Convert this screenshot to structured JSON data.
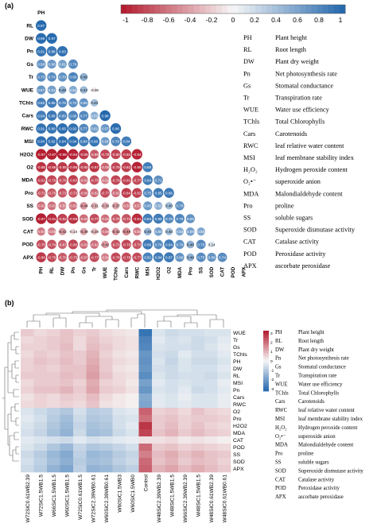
{
  "panel_labels": {
    "a": "(a)",
    "b": "(b)"
  },
  "legend_a": {
    "ticks": [
      "-1",
      "-0.8",
      "-0.6",
      "-0.4",
      "-0.2",
      "0",
      "0.2",
      "0.4",
      "0.6",
      "0.8",
      "1"
    ],
    "key": [
      [
        "PH",
        "Plant height"
      ],
      [
        "RL",
        "Root length"
      ],
      [
        "DW",
        "Plant dry weight"
      ],
      [
        "Pn",
        "Net photosynthesis rate"
      ],
      [
        "Gs",
        "Stomatal conductance"
      ],
      [
        "Tr",
        "Transpiration rate"
      ],
      [
        "WUE",
        "Water use efficiency"
      ],
      [
        "TChls",
        "Total Chlorophylls"
      ],
      [
        "Cars",
        "Carotenoids"
      ],
      [
        "RWC",
        "leaf relative water content"
      ],
      [
        "MSI",
        "leaf membrane stability index"
      ],
      [
        "H₂O₂",
        "Hydrogen peroxide content"
      ],
      [
        "O₂•⁻",
        "superoxide anion"
      ],
      [
        "MDA",
        "Malondialdehyde content"
      ],
      [
        "Pro",
        "proline"
      ],
      [
        "SS",
        "soluble sugars"
      ],
      [
        "SOD",
        "Superoxide dismutase activity"
      ],
      [
        "CAT",
        "Catalase activity"
      ],
      [
        "POD",
        "Peroxidase activity"
      ],
      [
        "APX",
        "ascorbate peroxidase"
      ]
    ]
  },
  "legend_b": {
    "ticks": [
      "3",
      "2",
      "1",
      "0",
      "-1",
      "-2",
      "-3"
    ],
    "key": [
      [
        "PH",
        "Plant height"
      ],
      [
        "RL",
        "Root length"
      ],
      [
        "DW",
        "Plant dry weight"
      ],
      [
        "Pn",
        "Net photosynthesis rate"
      ],
      [
        "Gs",
        "Stomatal conductance"
      ],
      [
        "Tr",
        "Transpiration rate"
      ],
      [
        "WUE",
        "Water use efficiency"
      ],
      [
        "TChls",
        "Total Chlorophylls"
      ],
      [
        "Cars",
        "Carotenoids"
      ],
      [
        "RWC",
        "leaf relative water content"
      ],
      [
        "MSI",
        "leaf membrane stability index"
      ],
      [
        "H₂O₂",
        "Hydrogen peroxide content"
      ],
      [
        "O₂•⁻",
        "superoxide anion"
      ],
      [
        "MDA",
        "Malondialdehyde content"
      ],
      [
        "Pro",
        "proline"
      ],
      [
        "SS",
        "soluble sugars"
      ],
      [
        "SOD",
        "Superoxide dismutase activity"
      ],
      [
        "CAT",
        "Catalase activity"
      ],
      [
        "POD",
        "Peroxidase activity"
      ],
      [
        "APX",
        "ascorbate peroxidase"
      ]
    ]
  },
  "colors": {
    "negative": "#b2182b",
    "zero": "#f7f7f7",
    "positive": "#2166ac",
    "heat_hi": "#b2182b",
    "heat_lo": "#2166ac"
  },
  "chart_data": [
    {
      "type": "heatmap",
      "variables": [
        "PH",
        "RL",
        "DW",
        "Pn",
        "Gs",
        "Tr",
        "WUE",
        "TChls",
        "Cars",
        "RWC",
        "MSI",
        "H2O2",
        "O2",
        "MDA",
        "Pro",
        "SS",
        "SOD",
        "CAT",
        "POD",
        "APX"
      ],
      "scale_range": [
        -1,
        1
      ],
      "lower_triangle": [
        [
          "0.97"
        ],
        [
          "0.96",
          "0.97"
        ],
        [
          "0.91",
          "0.88",
          "0.93"
        ],
        [
          "0.68",
          "0.66",
          "0.61",
          "0.76"
        ],
        [
          "0.73",
          "0.74",
          "0.70",
          "0.80",
          "0.49"
        ],
        [
          "0.67",
          "0.61",
          "0.49",
          "0.54",
          "0.43",
          "-0.06"
        ],
        [
          "0.82",
          "0.85",
          "0.78",
          "0.72",
          "0.68",
          "0.40"
        ],
        [
          "0.84",
          "0.88",
          "0.80",
          "0.80",
          "0.77",
          "0.51",
          "0.98"
        ],
        [
          "0.91",
          "0.90",
          "0.95",
          "0.92",
          "0.77",
          "0.61",
          "0.67",
          "0.96"
        ],
        [
          "0.94",
          "0.92",
          "0.94",
          "0.94",
          "0.84",
          "0.90",
          "0.64",
          "0.79",
          "0.84"
        ],
        [
          "-0.97",
          "-0.97",
          "-0.98",
          "-0.94",
          "-0.85",
          "-0.69",
          "-0.78",
          "-0.80",
          "-0.84",
          "-0.94"
        ],
        [
          "-0.88",
          "-0.86",
          "-0.85",
          "-0.86",
          "-0.80",
          "-0.87",
          "-0.65",
          "-0.79",
          "-0.82",
          "-0.95",
          "0.85"
        ],
        [
          "-0.81",
          "-0.79",
          "-0.76",
          "-0.83",
          "-0.62",
          "-0.75",
          "-0.54",
          "-0.79",
          "-0.83",
          "-0.77",
          "0.84",
          "0.71"
        ],
        [
          "-0.71",
          "-0.70",
          "-0.72",
          "-0.73",
          "-0.66",
          "-0.62",
          "-0.77",
          "-0.61",
          "-0.84",
          "-0.82",
          "0.75",
          "0.85",
          "0.86"
        ],
        [
          "-0.61",
          "-0.61",
          "-0.53",
          "-0.59",
          "-0.44",
          "-0.31",
          "-0.33",
          "-0.37",
          "-0.56",
          "-0.57",
          "0.65",
          "0.52",
          "0.40",
          "0.70"
        ],
        [
          "-0.97",
          "-0.91",
          "-0.82",
          "-0.89",
          "-0.62",
          "-0.77",
          "-0.61",
          "-0.70",
          "-0.73",
          "-0.91",
          "0.84",
          "0.85",
          "0.76",
          "0.78",
          "0.69"
        ],
        [
          "-0.57",
          "-0.55",
          "-0.42",
          "-0.14",
          "-0.39",
          "-0.28",
          "-0.59",
          "-0.43",
          "-0.49",
          "-0.55",
          "0.45",
          "0.60",
          "0.40",
          "0.54",
          "0.59",
          "0.55"
        ],
        [
          "-0.75",
          "-0.74",
          "-0.67",
          "-0.80",
          "-0.63",
          "-0.61",
          "-0.42",
          "-0.73",
          "-0.79",
          "-0.73",
          "0.86",
          "0.74",
          "0.84",
          "0.70",
          "0.48",
          "0.75",
          "0.14"
        ],
        [
          "-0.86",
          "-0.78",
          "-0.70",
          "-0.75",
          "-0.67",
          "-0.77",
          "-0.54",
          "-0.78",
          "-0.78",
          "-0.77",
          "0.81",
          "0.84",
          "0.87",
          "0.69",
          "0.49",
          "0.75",
          "0.69",
          "0.74"
        ]
      ]
    },
    {
      "type": "heatmap",
      "rows": [
        "WUE",
        "Tr",
        "Gs",
        "TChls",
        "PH",
        "DW",
        "RL",
        "MSI",
        "Pn",
        "Cars",
        "RWC",
        "O2",
        "Pro",
        "H2O2",
        "MDA",
        "CAT",
        "POD",
        "SS",
        "SOD",
        "APX"
      ],
      "columns": [
        "W72SiC0.61WB2.39",
        "W72SiC1.5WB1.5",
        "W66SiC1.5WB1.5",
        "W60SiC1.5WB1.5",
        "W72SiC0.61WB1.5",
        "W72SiC2.39WB0.61",
        "W60SiC2.39WB0.61",
        "W60SiC1.5WB3",
        "W60SiC1.5WB0",
        "Control",
        "W48SiC2.39WB2.39",
        "W48SiC1.5WB1.5",
        "W66SiC2.39WB2.39",
        "W48SiC1.5WB1.5",
        "W48SiC0.61WB2.39",
        "W48SiC0.61WB0.61"
      ],
      "color_range": [
        -3,
        3
      ],
      "values": [
        [
          0.6,
          0.4,
          0.5,
          0.7,
          0.5,
          0.6,
          0.4,
          0.3,
          0.2,
          -2.7,
          -0.4,
          -0.6,
          -0.5,
          -0.5,
          -0.4,
          -0.4
        ],
        [
          0.4,
          0.5,
          0.6,
          0.7,
          0.4,
          0.7,
          0.5,
          0.4,
          0.3,
          -2.4,
          -0.3,
          -0.5,
          -0.4,
          -0.6,
          -0.5,
          -0.3
        ],
        [
          0.5,
          0.5,
          0.6,
          0.8,
          0.4,
          0.8,
          0.6,
          0.4,
          0.3,
          -2.3,
          -0.4,
          -0.5,
          -0.5,
          -0.6,
          -0.4,
          -0.2
        ],
        [
          0.4,
          0.6,
          0.5,
          0.7,
          0.6,
          0.9,
          0.5,
          0.3,
          0.2,
          -2.0,
          -0.5,
          -0.6,
          -0.3,
          -0.5,
          -0.5,
          -0.3
        ],
        [
          0.5,
          0.7,
          0.6,
          0.8,
          0.6,
          1.0,
          0.6,
          0.4,
          0.3,
          -2.1,
          -0.4,
          -0.7,
          -0.4,
          -0.6,
          -0.6,
          -0.4
        ],
        [
          0.5,
          0.6,
          0.5,
          0.7,
          0.7,
          1.1,
          0.6,
          0.3,
          0.2,
          -2.0,
          -0.5,
          -0.6,
          -0.4,
          -0.5,
          -0.5,
          -0.3
        ],
        [
          0.6,
          0.6,
          0.6,
          0.8,
          0.7,
          1.2,
          0.7,
          0.4,
          0.3,
          -2.2,
          -0.4,
          -0.6,
          -0.5,
          -0.5,
          -0.6,
          -0.4
        ],
        [
          0.4,
          0.6,
          0.6,
          0.7,
          0.5,
          1.0,
          0.5,
          0.4,
          0.2,
          -1.8,
          -0.3,
          -0.5,
          -0.4,
          -0.5,
          -0.5,
          -0.2
        ],
        [
          0.5,
          0.7,
          0.7,
          0.9,
          0.6,
          1.1,
          0.6,
          0.5,
          0.3,
          -2.0,
          -0.4,
          -0.5,
          -0.3,
          -0.6,
          -0.5,
          -0.3
        ],
        [
          0.3,
          0.5,
          0.4,
          0.6,
          0.5,
          0.8,
          0.4,
          0.2,
          0.1,
          -1.6,
          -0.3,
          -0.4,
          -0.2,
          -0.4,
          -0.4,
          -0.2
        ],
        [
          0.4,
          0.5,
          0.4,
          0.5,
          0.4,
          0.7,
          0.3,
          0.2,
          0.1,
          -1.7,
          -0.3,
          -0.4,
          -0.3,
          -0.4,
          -0.4,
          -0.2
        ],
        [
          -0.4,
          -0.6,
          -0.8,
          -1.0,
          -0.5,
          -0.9,
          -0.8,
          -0.4,
          -0.3,
          2.0,
          0.5,
          0.6,
          0.4,
          0.7,
          0.5,
          0.4
        ],
        [
          -0.3,
          -0.5,
          -0.9,
          -1.2,
          -0.6,
          -1.0,
          -0.9,
          -0.5,
          -0.4,
          1.8,
          0.6,
          0.7,
          0.5,
          0.6,
          0.6,
          0.5
        ],
        [
          -0.4,
          -0.6,
          -1.0,
          -1.3,
          -0.7,
          -1.1,
          -1.0,
          -0.5,
          -0.3,
          2.6,
          0.6,
          0.8,
          0.5,
          0.7,
          0.5,
          0.4
        ],
        [
          -0.5,
          -0.7,
          -1.1,
          -1.4,
          -0.6,
          -1.2,
          -1.1,
          -0.6,
          -0.4,
          2.4,
          0.7,
          0.9,
          0.6,
          0.8,
          0.6,
          0.5
        ],
        [
          -0.3,
          -0.4,
          -0.5,
          -0.6,
          -0.3,
          -0.5,
          -0.4,
          -0.3,
          -0.2,
          0.3,
          0.3,
          0.4,
          0.2,
          0.3,
          0.2,
          0.1
        ],
        [
          -0.4,
          -0.6,
          -1.0,
          -1.3,
          -0.7,
          -1.0,
          -0.9,
          -0.7,
          -0.5,
          1.9,
          0.6,
          0.7,
          0.5,
          0.6,
          0.5,
          0.4
        ],
        [
          -0.6,
          -0.9,
          -1.3,
          -1.6,
          -0.8,
          -1.3,
          -1.2,
          -0.9,
          -0.7,
          1.6,
          0.8,
          1.0,
          0.7,
          0.9,
          0.7,
          0.6
        ],
        [
          -0.5,
          -0.8,
          -1.2,
          -1.5,
          -0.9,
          -1.2,
          -1.1,
          -0.8,
          -0.6,
          1.9,
          0.7,
          0.9,
          0.6,
          0.8,
          0.7,
          0.5
        ],
        [
          -0.6,
          -0.9,
          -1.4,
          -1.7,
          -0.8,
          -1.4,
          -1.3,
          -1.0,
          -0.8,
          2.0,
          0.9,
          1.1,
          0.8,
          1.0,
          0.8,
          0.6
        ]
      ]
    }
  ]
}
